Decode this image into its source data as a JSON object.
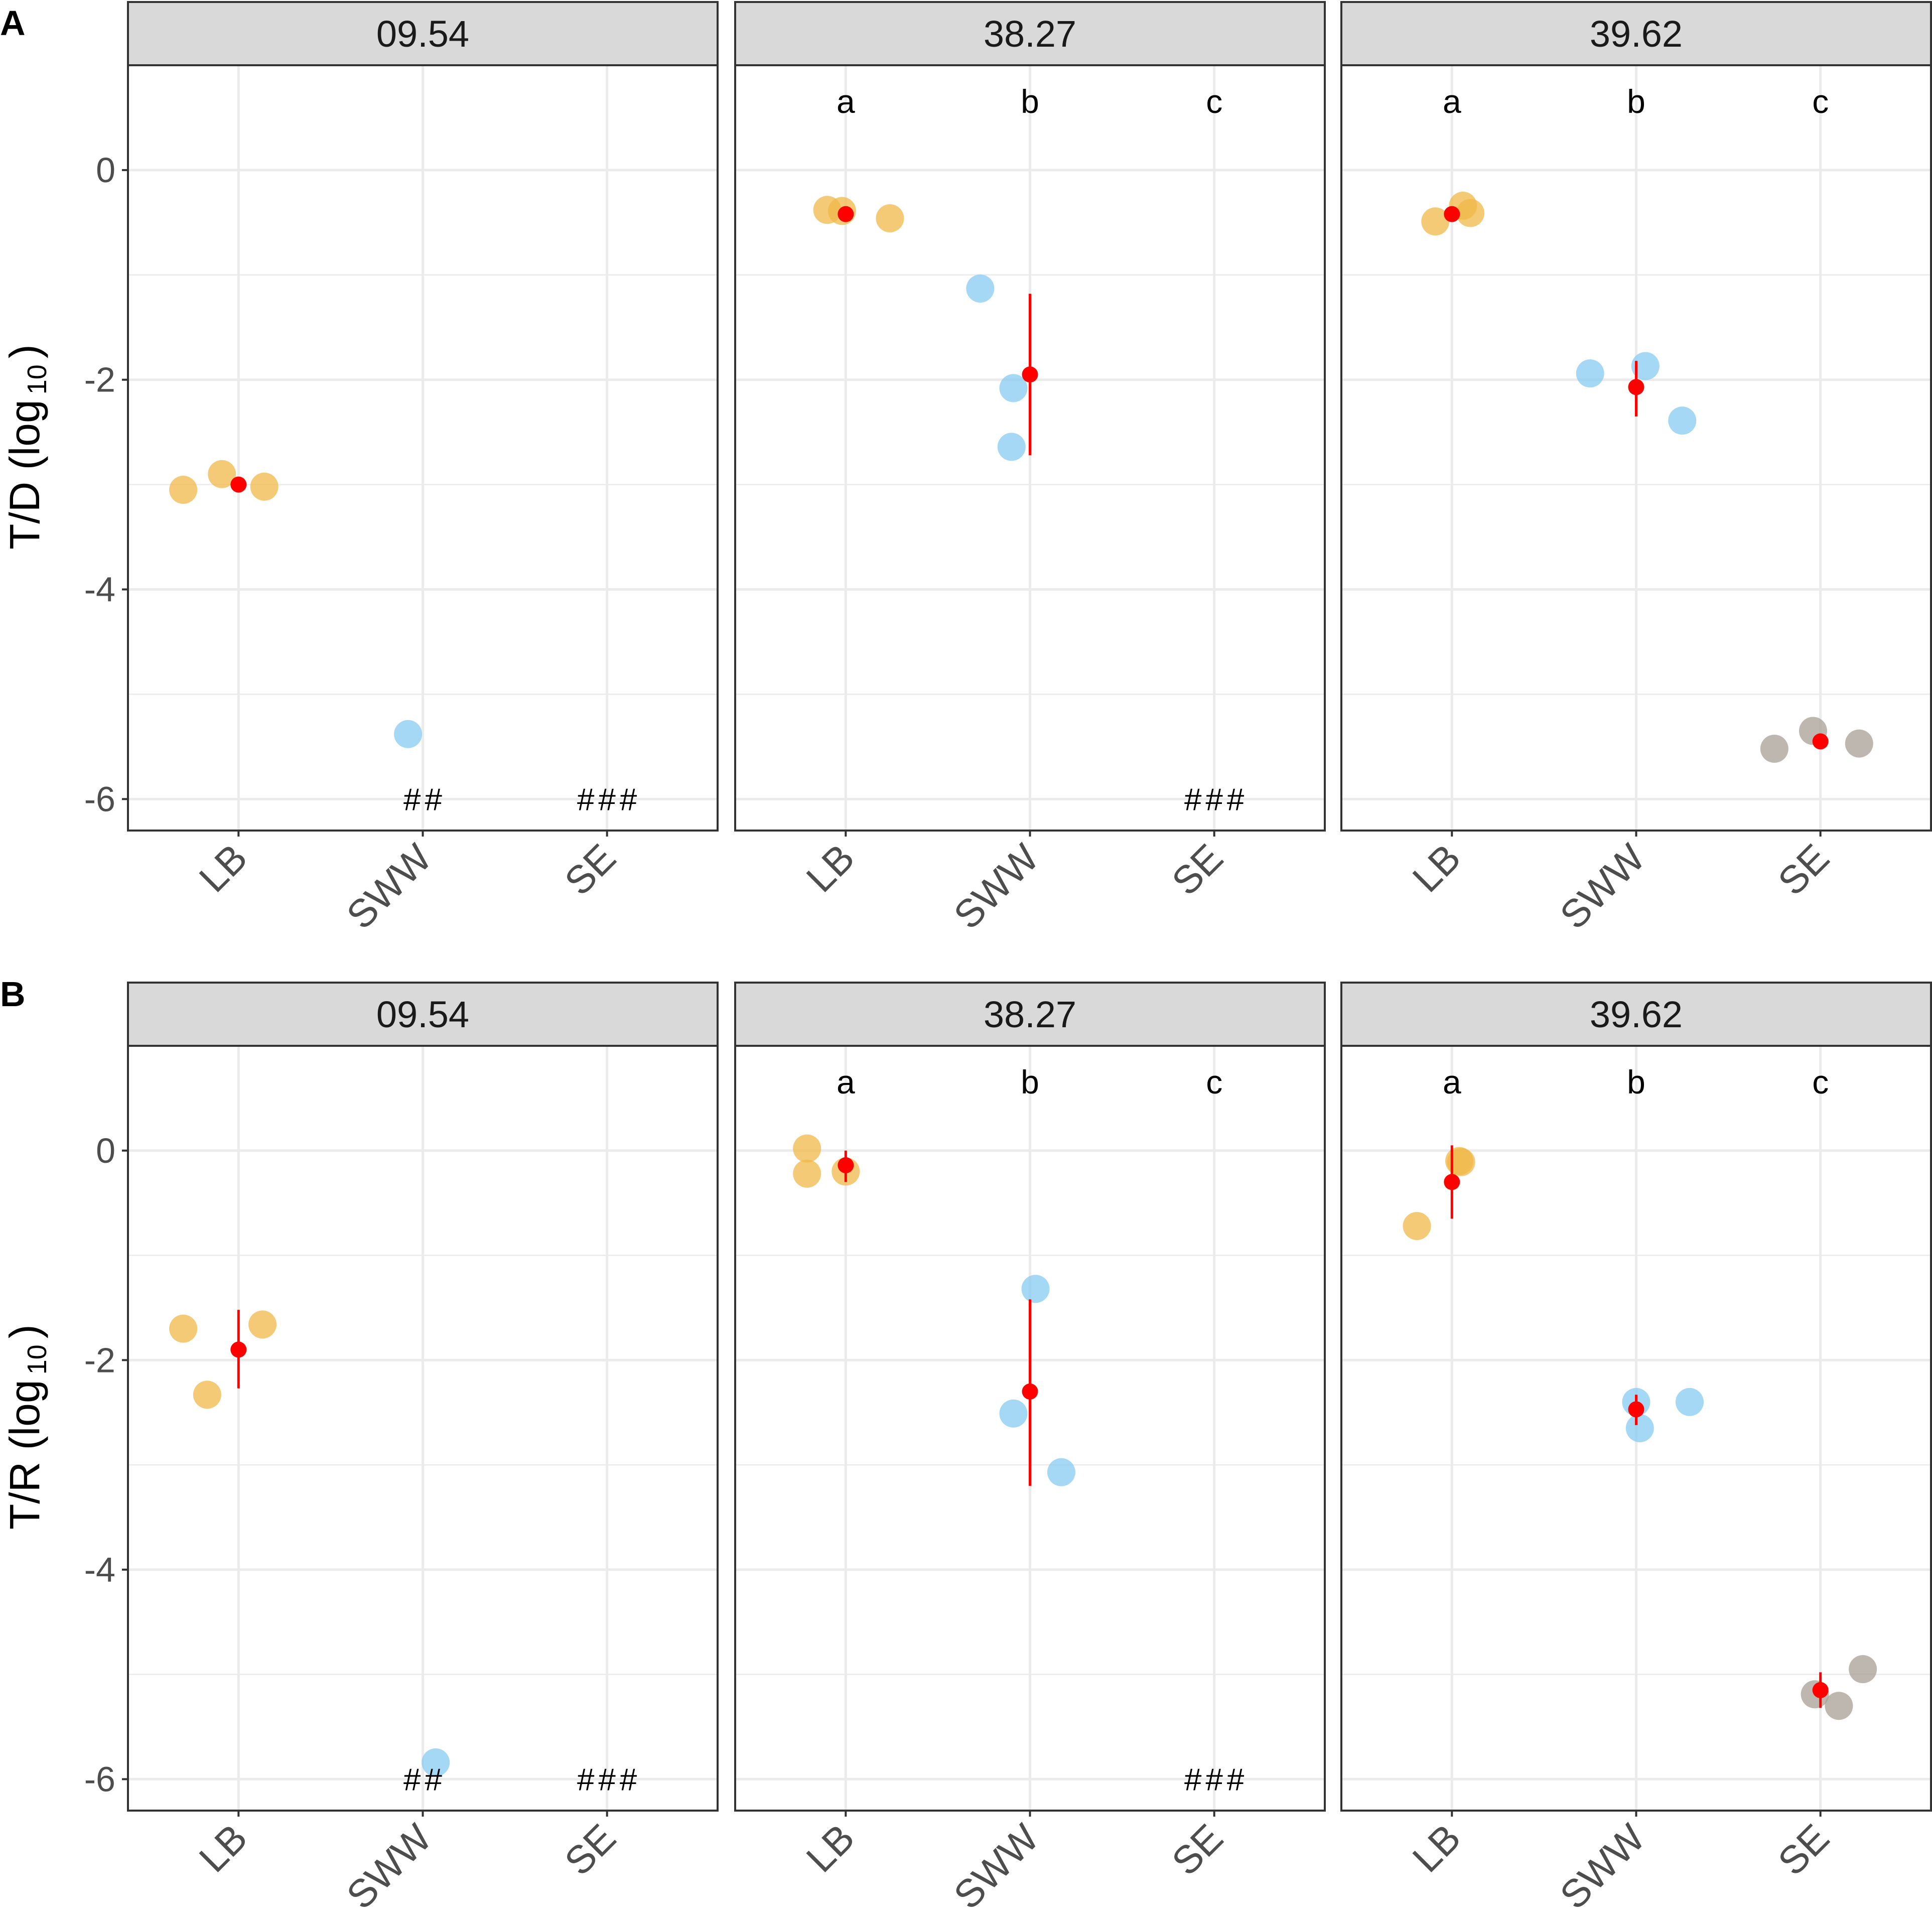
{
  "chart_data": [
    {
      "panel": "A",
      "type": "scatter",
      "ylabel": "T/D (log₁₀)",
      "ylabel_main": "T/D (log",
      "ylabel_sub": "10",
      "ylabel_close": ")",
      "ylim": [
        -6.3,
        1.0
      ],
      "yticks": [
        0,
        -2,
        -4,
        -6
      ],
      "ytick_labels": [
        "0",
        "-2",
        "-4",
        "-6"
      ],
      "categories": [
        "LB",
        "SWW",
        "SE"
      ],
      "facets": [
        {
          "label": "09.54",
          "sig_letters": [
            "",
            "",
            ""
          ],
          "not_detected": [
            "",
            "##",
            "###"
          ],
          "points": [
            {
              "cat": 0,
              "dx": -0.3,
              "y": -3.05
            },
            {
              "cat": 0,
              "dx": -0.09,
              "y": -2.9
            },
            {
              "cat": 0,
              "dx": 0.14,
              "y": -3.02
            },
            {
              "cat": 1,
              "dx": -0.08,
              "y": -5.38
            }
          ],
          "means": [
            {
              "cat": 0,
              "y": -3.0,
              "lo": -3.0,
              "hi": -3.0
            }
          ]
        },
        {
          "label": "38.27",
          "sig_letters": [
            "a",
            "b",
            "c"
          ],
          "not_detected": [
            "",
            "",
            "###"
          ],
          "points": [
            {
              "cat": 0,
              "dx": -0.1,
              "y": -0.38
            },
            {
              "cat": 0,
              "dx": -0.02,
              "y": -0.39
            },
            {
              "cat": 0,
              "dx": 0.24,
              "y": -0.46
            },
            {
              "cat": 1,
              "dx": -0.27,
              "y": -1.13
            },
            {
              "cat": 1,
              "dx": -0.09,
              "y": -2.08
            },
            {
              "cat": 1,
              "dx": -0.1,
              "y": -2.64
            }
          ],
          "means": [
            {
              "cat": 0,
              "y": -0.42,
              "lo": -0.42,
              "hi": -0.42
            },
            {
              "cat": 1,
              "y": -1.95,
              "lo": -2.72,
              "hi": -1.18
            }
          ]
        },
        {
          "label": "39.62",
          "sig_letters": [
            "a",
            "b",
            "c"
          ],
          "not_detected": [
            "",
            "",
            ""
          ],
          "points": [
            {
              "cat": 0,
              "dx": -0.09,
              "y": -0.49
            },
            {
              "cat": 0,
              "dx": 0.06,
              "y": -0.34
            },
            {
              "cat": 0,
              "dx": 0.1,
              "y": -0.41
            },
            {
              "cat": 1,
              "dx": -0.25,
              "y": -1.94
            },
            {
              "cat": 1,
              "dx": 0.05,
              "y": -1.87
            },
            {
              "cat": 1,
              "dx": 0.25,
              "y": -2.39
            },
            {
              "cat": 2,
              "dx": -0.25,
              "y": -5.52
            },
            {
              "cat": 2,
              "dx": -0.04,
              "y": -5.35
            },
            {
              "cat": 2,
              "dx": 0.21,
              "y": -5.47
            }
          ],
          "means": [
            {
              "cat": 0,
              "y": -0.42,
              "lo": -0.42,
              "hi": -0.42
            },
            {
              "cat": 1,
              "y": -2.07,
              "lo": -2.35,
              "hi": -1.82
            },
            {
              "cat": 2,
              "y": -5.45,
              "lo": -5.45,
              "hi": -5.45
            }
          ]
        }
      ]
    },
    {
      "panel": "B",
      "type": "scatter",
      "ylabel": "T/R (log₁₀)",
      "ylabel_main": "T/R (log",
      "ylabel_sub": "10",
      "ylabel_close": ")",
      "ylim": [
        -6.3,
        1.0
      ],
      "yticks": [
        0,
        -2,
        -4,
        -6
      ],
      "ytick_labels": [
        "0",
        "-2",
        "-4",
        "-6"
      ],
      "categories": [
        "LB",
        "SWW",
        "SE"
      ],
      "facets": [
        {
          "label": "09.54",
          "sig_letters": [
            "",
            "",
            ""
          ],
          "not_detected": [
            "",
            "##",
            "###"
          ],
          "points": [
            {
              "cat": 0,
              "dx": -0.3,
              "y": -1.7
            },
            {
              "cat": 0,
              "dx": -0.17,
              "y": -2.33
            },
            {
              "cat": 0,
              "dx": 0.13,
              "y": -1.66
            },
            {
              "cat": 1,
              "dx": 0.07,
              "y": -5.84
            }
          ],
          "means": [
            {
              "cat": 0,
              "y": -1.9,
              "lo": -2.27,
              "hi": -1.52
            }
          ]
        },
        {
          "label": "38.27",
          "sig_letters": [
            "a",
            "b",
            "c"
          ],
          "not_detected": [
            "",
            "",
            "###"
          ],
          "points": [
            {
              "cat": 0,
              "dx": -0.21,
              "y": 0.02
            },
            {
              "cat": 0,
              "dx": -0.21,
              "y": -0.22
            },
            {
              "cat": 0,
              "dx": 0.0,
              "y": -0.2
            },
            {
              "cat": 1,
              "dx": 0.03,
              "y": -1.32
            },
            {
              "cat": 1,
              "dx": -0.09,
              "y": -2.51
            },
            {
              "cat": 1,
              "dx": 0.17,
              "y": -3.07
            }
          ],
          "means": [
            {
              "cat": 0,
              "y": -0.14,
              "lo": -0.3,
              "hi": 0.0
            },
            {
              "cat": 1,
              "y": -2.3,
              "lo": -3.2,
              "hi": -1.42
            }
          ]
        },
        {
          "label": "39.62",
          "sig_letters": [
            "a",
            "b",
            "c"
          ],
          "not_detected": [
            "",
            "",
            ""
          ],
          "points": [
            {
              "cat": 0,
              "dx": -0.19,
              "y": -0.72
            },
            {
              "cat": 0,
              "dx": 0.04,
              "y": -0.1
            },
            {
              "cat": 0,
              "dx": 0.05,
              "y": -0.11
            },
            {
              "cat": 1,
              "dx": 0.0,
              "y": -2.4
            },
            {
              "cat": 1,
              "dx": 0.02,
              "y": -2.65
            },
            {
              "cat": 1,
              "dx": 0.29,
              "y": -2.4
            },
            {
              "cat": 2,
              "dx": -0.03,
              "y": -5.19
            },
            {
              "cat": 2,
              "dx": 0.1,
              "y": -5.3
            },
            {
              "cat": 2,
              "dx": 0.23,
              "y": -4.95
            }
          ],
          "means": [
            {
              "cat": 0,
              "y": -0.3,
              "lo": -0.65,
              "hi": 0.05
            },
            {
              "cat": 1,
              "y": -2.47,
              "lo": -2.62,
              "hi": -2.33
            },
            {
              "cat": 2,
              "y": -5.15,
              "lo": -5.32,
              "hi": -4.98
            }
          ]
        }
      ]
    }
  ],
  "colors": {
    "LB": "#f0b848",
    "SWW": "#87cbf0",
    "SE": "#a89f96",
    "mean": "#ff0000",
    "grid": "#ebebeb",
    "strip": "#d9d9d9",
    "frame": "#333333"
  }
}
